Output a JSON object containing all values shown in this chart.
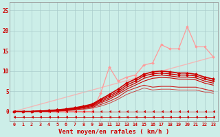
{
  "background_color": "#cceee8",
  "grid_color": "#aacccc",
  "xlabel": "Vent moyen/en rafales ( km/h )",
  "ylabel_ticks": [
    0,
    5,
    10,
    15,
    20,
    25
  ],
  "xticks": [
    0,
    1,
    2,
    3,
    4,
    5,
    6,
    7,
    8,
    9,
    10,
    11,
    12,
    13,
    14,
    15,
    16,
    17,
    18,
    19,
    20,
    21,
    22,
    23
  ],
  "xlim": [
    -0.5,
    23.5
  ],
  "ylim": [
    -2.5,
    27
  ],
  "xlabel_color": "#cc0000",
  "tick_color": "#cc0000",
  "lines": [
    {
      "x": [
        0,
        23
      ],
      "y": [
        0,
        13.5
      ],
      "color": "#ffaaaa",
      "lw": 1.0,
      "marker": null,
      "ms": 0,
      "alpha": 0.8,
      "zorder": 1
    },
    {
      "x": [
        0,
        1,
        2,
        3,
        4,
        5,
        6,
        7,
        8,
        9,
        10,
        11,
        12,
        13,
        14,
        15,
        16,
        17,
        18,
        19,
        20,
        21,
        22,
        23
      ],
      "y": [
        0,
        0,
        0,
        0,
        0,
        0,
        0,
        0,
        0,
        0,
        4.5,
        11.0,
        7.5,
        8.5,
        9.0,
        11.5,
        12.0,
        16.5,
        15.5,
        15.5,
        21.0,
        16.0,
        16.0,
        13.5
      ],
      "color": "#ff9999",
      "lw": 0.9,
      "marker": "D",
      "ms": 2.0,
      "alpha": 1.0,
      "zorder": 3
    },
    {
      "x": [
        0,
        1,
        2,
        3,
        4,
        5,
        6,
        7,
        8,
        9,
        10,
        11,
        12,
        13,
        14,
        15,
        16,
        17,
        18,
        19,
        20,
        21,
        22,
        23
      ],
      "y": [
        0,
        0,
        0,
        0.1,
        0.2,
        0.4,
        0.6,
        0.9,
        1.3,
        1.8,
        3.0,
        4.2,
        5.5,
        7.0,
        8.0,
        9.2,
        9.8,
        10.0,
        9.8,
        9.5,
        9.5,
        9.2,
        8.5,
        8.0
      ],
      "color": "#cc0000",
      "lw": 1.2,
      "marker": "D",
      "ms": 2.2,
      "alpha": 1.0,
      "zorder": 4
    },
    {
      "x": [
        0,
        1,
        2,
        3,
        4,
        5,
        6,
        7,
        8,
        9,
        10,
        11,
        12,
        13,
        14,
        15,
        16,
        17,
        18,
        19,
        20,
        21,
        22,
        23
      ],
      "y": [
        0,
        0,
        0,
        0.1,
        0.2,
        0.3,
        0.5,
        0.8,
        1.1,
        1.6,
        2.7,
        3.8,
        5.0,
        6.5,
        7.5,
        8.8,
        9.3,
        9.5,
        9.3,
        9.0,
        9.0,
        8.8,
        8.0,
        7.5
      ],
      "color": "#cc0000",
      "lw": 1.0,
      "marker": "D",
      "ms": 1.8,
      "alpha": 1.0,
      "zorder": 4
    },
    {
      "x": [
        0,
        1,
        2,
        3,
        4,
        5,
        6,
        7,
        8,
        9,
        10,
        11,
        12,
        13,
        14,
        15,
        16,
        17,
        18,
        19,
        20,
        21,
        22,
        23
      ],
      "y": [
        0,
        0,
        0,
        0.1,
        0.15,
        0.25,
        0.4,
        0.65,
        1.0,
        1.4,
        2.4,
        3.4,
        4.6,
        6.0,
        7.0,
        8.2,
        8.8,
        9.0,
        8.8,
        8.5,
        8.5,
        8.3,
        7.5,
        7.0
      ],
      "color": "#cc0000",
      "lw": 0.9,
      "marker": null,
      "ms": 0,
      "alpha": 1.0,
      "zorder": 4
    },
    {
      "x": [
        0,
        1,
        2,
        3,
        4,
        5,
        6,
        7,
        8,
        9,
        10,
        11,
        12,
        13,
        14,
        15,
        16,
        17,
        18,
        19,
        20,
        21,
        22,
        23
      ],
      "y": [
        0,
        0,
        0,
        0.05,
        0.1,
        0.2,
        0.35,
        0.55,
        0.85,
        1.2,
        2.1,
        3.0,
        4.2,
        5.5,
        6.5,
        7.5,
        8.2,
        8.4,
        8.3,
        8.0,
        8.0,
        7.8,
        7.0,
        6.5
      ],
      "color": "#cc0000",
      "lw": 0.8,
      "marker": null,
      "ms": 0,
      "alpha": 1.0,
      "zorder": 4
    },
    {
      "x": [
        0,
        1,
        2,
        3,
        4,
        5,
        6,
        7,
        8,
        9,
        10,
        11,
        12,
        13,
        14,
        15,
        16,
        17,
        18,
        19,
        20,
        21,
        22,
        23
      ],
      "y": [
        0,
        0,
        0,
        0.05,
        0.1,
        0.15,
        0.25,
        0.4,
        0.65,
        1.0,
        1.7,
        2.5,
        3.5,
        5.0,
        5.8,
        6.5,
        6.0,
        6.2,
        6.2,
        6.0,
        6.0,
        6.0,
        5.5,
        5.0
      ],
      "color": "#cc0000",
      "lw": 0.8,
      "marker": null,
      "ms": 0,
      "alpha": 0.85,
      "zorder": 4
    },
    {
      "x": [
        0,
        1,
        2,
        3,
        4,
        5,
        6,
        7,
        8,
        9,
        10,
        11,
        12,
        13,
        14,
        15,
        16,
        17,
        18,
        19,
        20,
        21,
        22,
        23
      ],
      "y": [
        0,
        0,
        0,
        0.0,
        0.05,
        0.1,
        0.2,
        0.3,
        0.5,
        0.8,
        1.3,
        2.0,
        3.0,
        4.2,
        5.0,
        5.8,
        5.3,
        5.5,
        5.5,
        5.3,
        5.3,
        5.3,
        4.8,
        4.5
      ],
      "color": "#cc0000",
      "lw": 0.7,
      "marker": null,
      "ms": 0,
      "alpha": 0.7,
      "zorder": 4
    },
    {
      "x": [
        0,
        1,
        2,
        3,
        4,
        5,
        6,
        7,
        8,
        9,
        10,
        11,
        12,
        13,
        14,
        15,
        16,
        17,
        18,
        19,
        20,
        21,
        22,
        23
      ],
      "y": [
        0,
        0,
        0,
        0,
        0,
        0,
        0,
        0,
        0,
        0,
        0,
        0,
        0,
        0,
        0,
        0,
        0,
        0,
        0,
        0,
        0,
        0,
        0,
        0
      ],
      "color": "#cc0000",
      "lw": 0.5,
      "marker": 4,
      "ms": 3.0,
      "alpha": 0.9,
      "zorder": 5
    },
    {
      "x": [
        0,
        1,
        2,
        3,
        4,
        5,
        6,
        7,
        8,
        9,
        10,
        11,
        12,
        13,
        14,
        15,
        16,
        17,
        18,
        19,
        20,
        21,
        22,
        23
      ],
      "y": [
        -1.5,
        -1.5,
        -1.5,
        -1.5,
        -1.5,
        -1.5,
        -1.5,
        -1.5,
        -1.5,
        -1.5,
        -1.5,
        -1.5,
        -1.5,
        -1.5,
        -1.5,
        -1.5,
        -1.5,
        -1.5,
        -1.5,
        -1.5,
        -1.5,
        -1.5,
        -1.5,
        -1.5
      ],
      "color": "#cc0000",
      "lw": 0.5,
      "marker": 4,
      "ms": 3.0,
      "alpha": 0.9,
      "zorder": 5
    }
  ]
}
